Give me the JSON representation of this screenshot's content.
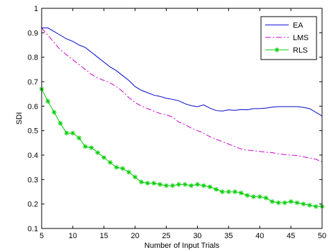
{
  "chart_data": {
    "type": "line",
    "title": "",
    "xlabel": "Number of Input Trials",
    "ylabel": "SDI",
    "xlim": [
      5,
      50
    ],
    "ylim": [
      0.1,
      1
    ],
    "xticks": [
      5,
      10,
      15,
      20,
      25,
      30,
      35,
      40,
      45,
      50
    ],
    "yticks": [
      0.1,
      0.2,
      0.3,
      0.4,
      0.5,
      0.6,
      0.7,
      0.8,
      0.9,
      1
    ],
    "grid": false,
    "legend_position": "top-right",
    "x": [
      5,
      6,
      7,
      8,
      9,
      10,
      11,
      12,
      13,
      14,
      15,
      16,
      17,
      18,
      19,
      20,
      21,
      22,
      23,
      24,
      25,
      26,
      27,
      28,
      29,
      30,
      31,
      32,
      33,
      34,
      35,
      36,
      37,
      38,
      39,
      40,
      41,
      42,
      43,
      44,
      45,
      46,
      47,
      48,
      49,
      50
    ],
    "series": [
      {
        "name": "EA",
        "color": "#0000cc",
        "style": "solid",
        "marker": "none",
        "values": [
          0.92,
          0.92,
          0.905,
          0.89,
          0.875,
          0.865,
          0.85,
          0.84,
          0.82,
          0.8,
          0.78,
          0.76,
          0.745,
          0.725,
          0.705,
          0.68,
          0.665,
          0.655,
          0.645,
          0.64,
          0.632,
          0.628,
          0.622,
          0.61,
          0.602,
          0.598,
          0.605,
          0.592,
          0.582,
          0.58,
          0.585,
          0.583,
          0.586,
          0.585,
          0.59,
          0.59,
          0.592,
          0.596,
          0.598,
          0.598,
          0.598,
          0.598,
          0.595,
          0.59,
          0.575,
          0.56
        ]
      },
      {
        "name": "LMS",
        "color": "#cc00cc",
        "style": "dashdot",
        "marker": "none",
        "values": [
          0.92,
          0.89,
          0.86,
          0.83,
          0.81,
          0.79,
          0.77,
          0.75,
          0.73,
          0.715,
          0.705,
          0.695,
          0.68,
          0.66,
          0.635,
          0.615,
          0.6,
          0.59,
          0.58,
          0.57,
          0.565,
          0.555,
          0.535,
          0.525,
          0.51,
          0.5,
          0.49,
          0.475,
          0.465,
          0.455,
          0.445,
          0.435,
          0.425,
          0.42,
          0.418,
          0.415,
          0.412,
          0.41,
          0.405,
          0.402,
          0.4,
          0.398,
          0.393,
          0.388,
          0.383,
          0.372
        ]
      },
      {
        "name": "RLS",
        "color": "#00cc00",
        "style": "solid",
        "marker": "star",
        "values": [
          0.67,
          0.62,
          0.575,
          0.53,
          0.49,
          0.49,
          0.47,
          0.435,
          0.43,
          0.41,
          0.39,
          0.37,
          0.35,
          0.345,
          0.33,
          0.31,
          0.29,
          0.285,
          0.285,
          0.28,
          0.275,
          0.275,
          0.28,
          0.28,
          0.275,
          0.28,
          0.275,
          0.27,
          0.26,
          0.25,
          0.25,
          0.25,
          0.245,
          0.235,
          0.23,
          0.23,
          0.225,
          0.21,
          0.205,
          0.205,
          0.21,
          0.205,
          0.2,
          0.195,
          0.19,
          0.19
        ]
      }
    ]
  }
}
